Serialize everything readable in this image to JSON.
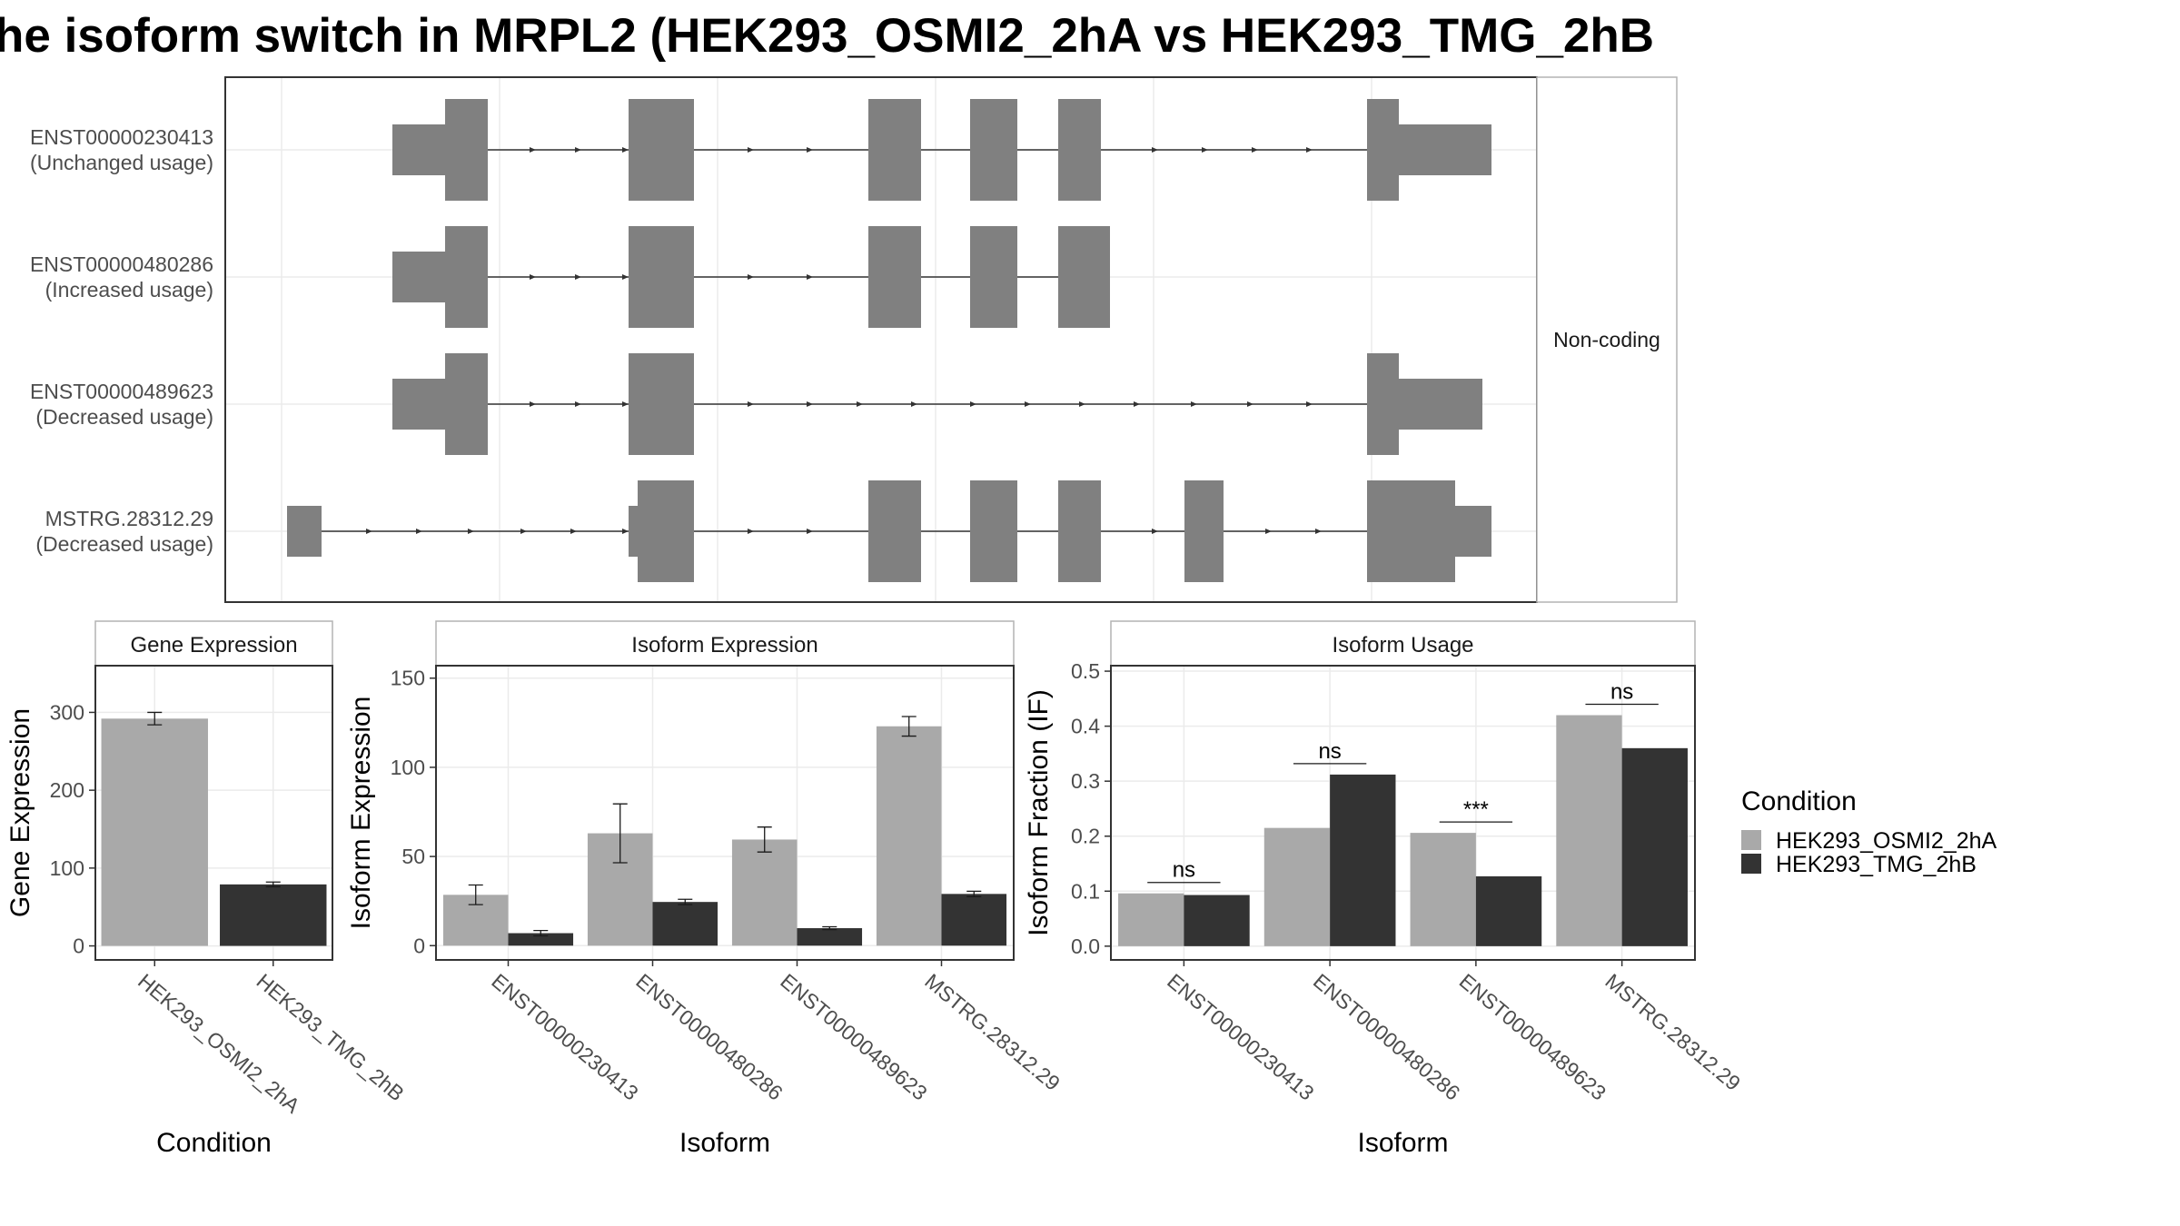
{
  "title": "he isoform switch in MRPL2 (HEK293_OSMI2_2hA vs HEK293_TMG_2hB",
  "colors": {
    "condA": "#a9a9a9",
    "condB": "#333333",
    "exon": "#808080",
    "panel_border": "#333333",
    "strip_border": "#b3b3b3",
    "grid": "#ebebeb",
    "text": "#1a1a1a",
    "axis_text": "#4d4d4d"
  },
  "legend": {
    "title": "Condition",
    "entries": [
      "HEK293_OSMI2_2hA",
      "HEK293_TMG_2hB"
    ]
  },
  "chart_data": [
    {
      "type": "gene-structure",
      "panel": "transcripts",
      "strip_label": "Non-coding",
      "transcripts": [
        {
          "id": "ENST00000230413",
          "label": "ENST00000230413",
          "usage": "(Unchanged usage)"
        },
        {
          "id": "ENST00000480286",
          "label": "ENST00000480286",
          "usage": "(Increased usage)"
        },
        {
          "id": "ENST00000489623",
          "label": "ENST00000489623",
          "usage": "(Decreased usage)"
        },
        {
          "id": "MSTRG.28312.29",
          "label": "MSTRG.28312.29",
          "usage": "(Decreased usage)"
        }
      ]
    },
    {
      "type": "bar",
      "panel": "gene",
      "title": "Gene Expression",
      "xlabel": "Condition",
      "ylabel": "Gene Expression",
      "ylim": [
        -18,
        360
      ],
      "yticks": [
        0,
        100,
        200,
        300
      ],
      "categories": [
        "HEK293_OSMI2_2hA",
        "HEK293_TMG_2hB"
      ],
      "values": [
        292,
        79
      ],
      "errors": [
        8,
        3
      ]
    },
    {
      "type": "bar",
      "panel": "isoform_expression",
      "title": "Isoform Expression",
      "xlabel": "Isoform",
      "ylabel": "Isoform Expression",
      "ylim": [
        -8,
        157
      ],
      "yticks": [
        0,
        50,
        100,
        150
      ],
      "categories": [
        "ENST00000230413",
        "ENST00000480286",
        "ENST00000489623",
        "MSTRG.28312.29"
      ],
      "series": [
        {
          "name": "HEK293_OSMI2_2hA",
          "values": [
            28.5,
            63,
            59.5,
            123
          ],
          "errors": [
            5.5,
            16.5,
            7,
            5.5
          ]
        },
        {
          "name": "HEK293_TMG_2hB",
          "values": [
            7,
            24.5,
            9.8,
            29
          ],
          "errors": [
            1.5,
            1.5,
            0.8,
            1.5
          ]
        }
      ]
    },
    {
      "type": "bar",
      "panel": "isoform_usage",
      "title": "Isoform Usage",
      "xlabel": "Isoform",
      "ylabel": "Isoform Fraction (IF)",
      "ylim": [
        -0.025,
        0.51
      ],
      "yticks": [
        0.0,
        0.1,
        0.2,
        0.3,
        0.4,
        0.5
      ],
      "categories": [
        "ENST00000230413",
        "ENST00000480286",
        "ENST00000489623",
        "MSTRG.28312.29"
      ],
      "series": [
        {
          "name": "HEK293_OSMI2_2hA",
          "values": [
            0.096,
            0.215,
            0.206,
            0.42
          ]
        },
        {
          "name": "HEK293_TMG_2hB",
          "values": [
            0.093,
            0.312,
            0.127,
            0.36
          ]
        }
      ],
      "significance": [
        "ns",
        "ns",
        "***",
        "ns"
      ]
    }
  ]
}
